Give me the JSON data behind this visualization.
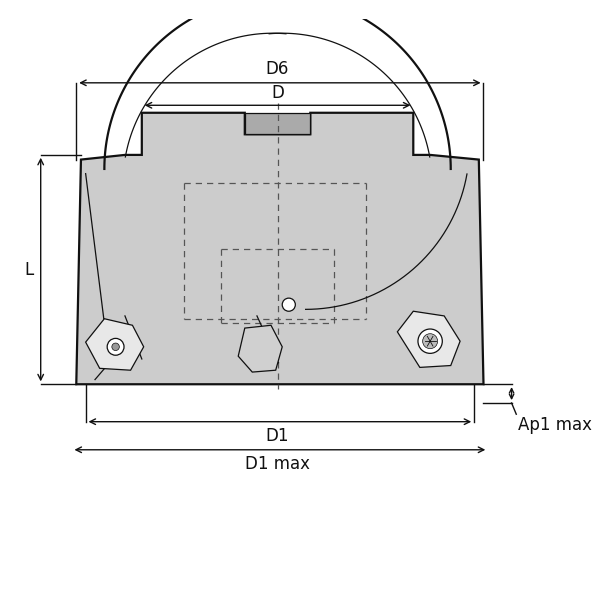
{
  "bg_color": "#ffffff",
  "body_fill": "#cccccc",
  "body_fill2": "#bbbbbb",
  "line_color": "#111111",
  "dashed_color": "#555555",
  "insert_fill": "#e8e8e8",
  "insert_fill2": "#d0d0d0",
  "labels": {
    "D6": "D6",
    "D": "D",
    "D1": "D1",
    "D1max": "D1 max",
    "L": "L",
    "Ap1max": "Ap1 max"
  },
  "font_size": 12,
  "lw_main": 1.6,
  "lw_thin": 0.9,
  "lw_dim": 1.0
}
